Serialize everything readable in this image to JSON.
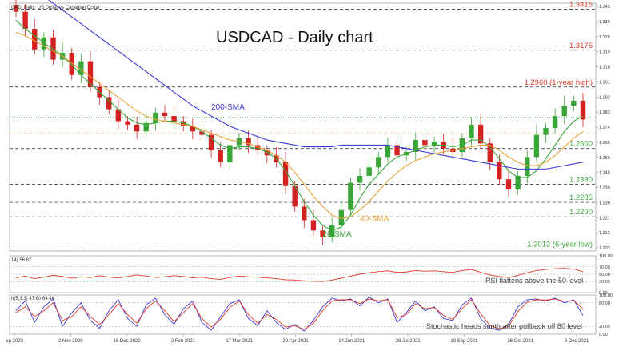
{
  "header": {
    "symbol_info": "CAD, Daily:  US Dollar vs Canadian Dollar"
  },
  "chart_data": [
    {
      "type": "candlestick",
      "title": "USDCAD - Daily chart",
      "ylim": [
        1.2,
        1.345
      ],
      "x_ticks": [
        "ep 2020",
        "2 Nov 2020",
        "16 Dec 2020",
        "2 Feb 2021",
        "17 Mar 2021",
        "29 Apr 2021",
        "14 Jun 2021",
        "28 Jul 2021",
        "10 Sep 2021",
        "26 Oct 2021",
        "9 Dec 2021"
      ],
      "y_ticks": [
        "1.345",
        "1.336",
        "1.328",
        "1.319",
        "1.310",
        "1.301",
        "1.292",
        "1.283",
        "1.274",
        "1.265",
        "1.256",
        "1.248",
        "1.239",
        "1.230",
        "1.221",
        "1.212",
        "1.203"
      ],
      "price_series": [
        1.34,
        1.33,
        1.318,
        1.325,
        1.312,
        1.316,
        1.303,
        1.311,
        1.296,
        1.29,
        1.283,
        1.276,
        1.274,
        1.27,
        1.275,
        1.281,
        1.279,
        1.276,
        1.273,
        1.27,
        1.268,
        1.259,
        1.252,
        1.262,
        1.266,
        1.262,
        1.259,
        1.256,
        1.252,
        1.238,
        1.226,
        1.218,
        1.212,
        1.208,
        1.215,
        1.224,
        1.24,
        1.244,
        1.249,
        1.255,
        1.262,
        1.256,
        1.258,
        1.265,
        1.262,
        1.264,
        1.26,
        1.258,
        1.266,
        1.274,
        1.263,
        1.252,
        1.242,
        1.236,
        1.244,
        1.255,
        1.268,
        1.272,
        1.279,
        1.285,
        1.288,
        1.277
      ],
      "indicators": [
        {
          "name": "20-SMA",
          "color": "#3aa63a",
          "values": [
            1.335,
            1.33,
            1.326,
            1.322,
            1.318,
            1.314,
            1.309,
            1.303,
            1.298,
            1.293,
            1.288,
            1.283,
            1.278,
            1.275,
            1.274,
            1.275,
            1.276,
            1.276,
            1.275,
            1.273,
            1.27,
            1.266,
            1.262,
            1.26,
            1.261,
            1.261,
            1.26,
            1.258,
            1.254,
            1.247,
            1.238,
            1.229,
            1.221,
            1.215,
            1.212,
            1.214,
            1.221,
            1.231,
            1.239,
            1.245,
            1.251,
            1.255,
            1.257,
            1.259,
            1.261,
            1.262,
            1.262,
            1.261,
            1.262,
            1.265,
            1.265,
            1.261,
            1.254,
            1.247,
            1.243,
            1.243,
            1.247,
            1.254,
            1.262,
            1.27,
            1.276,
            1.279
          ]
        },
        {
          "name": "40-SMA",
          "color": "#e8a33a",
          "values": [
            1.328,
            1.326,
            1.323,
            1.32,
            1.317,
            1.314,
            1.31,
            1.306,
            1.302,
            1.298,
            1.294,
            1.29,
            1.286,
            1.282,
            1.279,
            1.277,
            1.276,
            1.275,
            1.274,
            1.273,
            1.271,
            1.269,
            1.267,
            1.265,
            1.264,
            1.263,
            1.261,
            1.259,
            1.256,
            1.252,
            1.246,
            1.239,
            1.232,
            1.226,
            1.221,
            1.219,
            1.22,
            1.224,
            1.229,
            1.235,
            1.241,
            1.246,
            1.25,
            1.253,
            1.255,
            1.257,
            1.258,
            1.259,
            1.26,
            1.261,
            1.262,
            1.262,
            1.259,
            1.255,
            1.252,
            1.25,
            1.25,
            1.252,
            1.256,
            1.261,
            1.266,
            1.27
          ]
        },
        {
          "name": "200-SMA",
          "color": "#3a3ad6",
          "values": [
            1.36,
            1.357,
            1.353,
            1.349,
            1.345,
            1.341,
            1.337,
            1.333,
            1.329,
            1.325,
            1.321,
            1.317,
            1.313,
            1.309,
            1.305,
            1.301,
            1.297,
            1.293,
            1.289,
            1.285,
            1.282,
            1.279,
            1.276,
            1.273,
            1.271,
            1.269,
            1.267,
            1.265,
            1.264,
            1.263,
            1.262,
            1.261,
            1.261,
            1.261,
            1.261,
            1.262,
            1.262,
            1.262,
            1.262,
            1.262,
            1.262,
            1.261,
            1.26,
            1.259,
            1.258,
            1.257,
            1.256,
            1.255,
            1.254,
            1.253,
            1.252,
            1.251,
            1.25,
            1.249,
            1.248,
            1.248,
            1.248,
            1.248,
            1.249,
            1.25,
            1.251,
            1.252
          ]
        }
      ],
      "annotations": [
        {
          "label": "1.3415",
          "value": 1.3415,
          "style": "dash",
          "color": "#e03a2a"
        },
        {
          "label": "1.3175",
          "value": 1.3175,
          "style": "dash",
          "color": "#e03a2a"
        },
        {
          "label": "1.2960 (1-year high)",
          "value": 1.296,
          "style": "dash",
          "color": "#e03a2a"
        },
        {
          "label": "1.2600",
          "value": 1.26,
          "style": "dash",
          "color": "#3aa63a"
        },
        {
          "label": "1.2390",
          "value": 1.239,
          "style": "dash",
          "color": "#3aa63a"
        },
        {
          "label": "1.2285",
          "value": 1.2285,
          "style": "dash",
          "color": "#3aa63a"
        },
        {
          "label": "1.2200",
          "value": 1.22,
          "style": "dash",
          "color": "#3aa63a"
        },
        {
          "label": "1.2012 (6-year low)",
          "value": 1.2012,
          "style": "dash",
          "color": "#3aa63a"
        }
      ],
      "reference_lines": [
        {
          "value": 1.2782,
          "color": "#3aa63a",
          "style": "dot"
        },
        {
          "value": 1.2688,
          "color": "#e8a33a",
          "style": "dot"
        }
      ],
      "sma_labels": [
        {
          "text": "200-SMA",
          "color": "#3a3ad6"
        },
        {
          "text": "40-SMA",
          "color": "#e8a33a"
        },
        {
          "text": "20-SMA",
          "color": "#3aa63a"
        }
      ]
    },
    {
      "type": "line",
      "header": "14) 56.87",
      "ylim": [
        0,
        100
      ],
      "y_ticks": [
        "100.00",
        "70.00",
        "50.00",
        "30.00",
        "0.00"
      ],
      "annotation": "RSI flattens above the 50 level",
      "series": [
        {
          "color": "#e03a2a",
          "values": [
            40,
            45,
            38,
            42,
            47,
            44,
            39,
            43,
            41,
            46,
            42,
            40,
            44,
            48,
            45,
            41,
            43,
            46,
            44,
            40,
            42,
            38,
            36,
            41,
            45,
            43,
            42,
            40,
            38,
            35,
            34,
            32,
            31,
            30,
            34,
            39,
            45,
            50,
            54,
            57,
            59,
            55,
            56,
            60,
            58,
            59,
            57,
            55,
            60,
            63,
            55,
            48,
            44,
            41,
            47,
            54,
            60,
            63,
            65,
            66,
            64,
            57
          ]
        }
      ]
    },
    {
      "type": "line",
      "header": "h(5,3,3) 47.60 64.46",
      "ylim": [
        0,
        100
      ],
      "y_ticks": [
        "100.00",
        "80.00",
        "20.00",
        "0.00"
      ],
      "annotation": "Stochastic heads south after pullback off 80 level",
      "series": [
        {
          "color": "#3a3ad6",
          "values": [
            60,
            85,
            30,
            70,
            90,
            20,
            55,
            80,
            35,
            15,
            60,
            88,
            40,
            20,
            75,
            92,
            50,
            25,
            65,
            85,
            30,
            10,
            45,
            78,
            88,
            40,
            22,
            60,
            30,
            12,
            25,
            8,
            35,
            70,
            92,
            85,
            90,
            72,
            95,
            80,
            90,
            30,
            55,
            85,
            60,
            70,
            40,
            35,
            75,
            92,
            40,
            15,
            10,
            25,
            70,
            88,
            90,
            85,
            92,
            80,
            88,
            47.6
          ]
        },
        {
          "color": "#e03a2a",
          "values": [
            55,
            70,
            45,
            60,
            80,
            35,
            45,
            70,
            45,
            25,
            50,
            78,
            50,
            28,
            65,
            85,
            60,
            32,
            55,
            78,
            40,
            18,
            38,
            68,
            85,
            50,
            28,
            50,
            38,
            18,
            22,
            12,
            28,
            60,
            85,
            88,
            88,
            78,
            90,
            85,
            88,
            42,
            50,
            78,
            65,
            68,
            48,
            38,
            65,
            88,
            52,
            22,
            14,
            20,
            58,
            82,
            88,
            87,
            90,
            84,
            86,
            64.46
          ]
        }
      ]
    }
  ]
}
